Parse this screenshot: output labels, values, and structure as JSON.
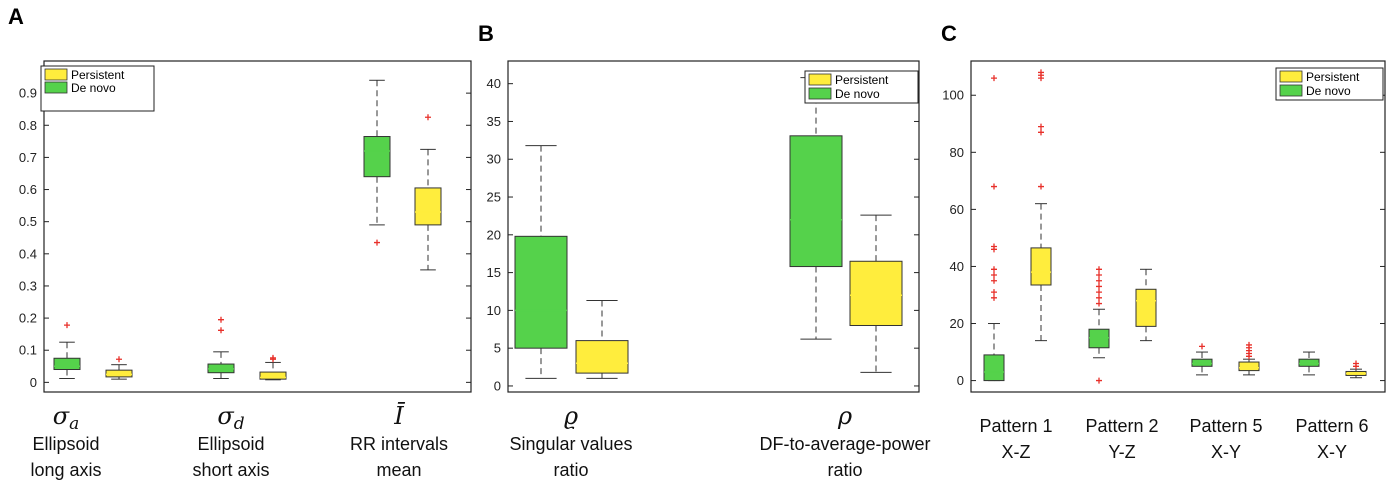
{
  "colors": {
    "persistent": "#FFED3D",
    "de_novo": "#55D24B",
    "outlier": "#E8302A"
  },
  "panels": [
    {
      "label": "A",
      "legend": [
        "Persistent",
        "De novo"
      ]
    },
    {
      "label": "B",
      "legend": [
        "Persistent",
        "De novo"
      ]
    },
    {
      "label": "C",
      "legend": [
        "Persistent",
        "De novo"
      ]
    }
  ],
  "chart_data": [
    {
      "type": "box",
      "panel": "A",
      "ylim": [
        -0.03,
        1.0
      ],
      "yticks": [
        0,
        0.1,
        0.2,
        0.3,
        0.4,
        0.5,
        0.6,
        0.7,
        0.8,
        0.9
      ],
      "legend_position": "top-left",
      "groups": [
        {
          "symbol": "σ",
          "sub": "a",
          "lines": [
            "Ellipsoid",
            "long axis"
          ],
          "boxes": [
            {
              "series": "De novo",
              "q1": 0.04,
              "median": 0.05,
              "q3": 0.075,
              "wl": 0.012,
              "wh": 0.125,
              "out": [
                0.178
              ]
            },
            {
              "series": "Persistent",
              "q1": 0.017,
              "median": 0.025,
              "q3": 0.038,
              "wl": 0.01,
              "wh": 0.055,
              "out": [
                0.072
              ]
            }
          ]
        },
        {
          "symbol": "σ",
          "sub": "d",
          "lines": [
            "Ellipsoid",
            "short axis"
          ],
          "boxes": [
            {
              "series": "De novo",
              "q1": 0.03,
              "median": 0.042,
              "q3": 0.057,
              "wl": 0.012,
              "wh": 0.095,
              "out": [
                0.162,
                0.195
              ]
            },
            {
              "series": "Persistent",
              "q1": 0.01,
              "median": 0.015,
              "q3": 0.032,
              "wl": 0.008,
              "wh": 0.062,
              "out": [
                0.072,
                0.076
              ]
            }
          ]
        },
        {
          "symbol": "Ī",
          "sub": "",
          "lines": [
            "RR intervals",
            "mean"
          ],
          "boxes": [
            {
              "series": "De novo",
              "q1": 0.64,
              "median": 0.72,
              "q3": 0.765,
              "wl": 0.49,
              "wh": 0.94,
              "out": [
                0.435
              ]
            },
            {
              "series": "Persistent",
              "q1": 0.49,
              "median": 0.53,
              "q3": 0.605,
              "wl": 0.35,
              "wh": 0.725,
              "out": [
                0.825
              ]
            }
          ]
        }
      ]
    },
    {
      "type": "box",
      "panel": "B",
      "ylim": [
        -0.8,
        43
      ],
      "yticks": [
        0,
        5,
        10,
        15,
        20,
        25,
        30,
        35,
        40
      ],
      "legend_position": "top-right",
      "groups": [
        {
          "symbol": "ϱ",
          "sub": "",
          "lines": [
            "Singular values",
            "ratio"
          ],
          "boxes": [
            {
              "series": "De novo",
              "q1": 5,
              "median": 10,
              "q3": 19.8,
              "wl": 1,
              "wh": 31.8,
              "out": []
            },
            {
              "series": "Persistent",
              "q1": 1.7,
              "median": 3,
              "q3": 6,
              "wl": 1,
              "wh": 11.3,
              "out": []
            }
          ]
        },
        {
          "symbol": "ρ",
          "sub": "",
          "lines": [
            "DF-to-average-power",
            "ratio"
          ],
          "boxes": [
            {
              "series": "De novo",
              "q1": 15.8,
              "median": 22,
              "q3": 33.1,
              "wl": 6.2,
              "wh": 40.8,
              "out": []
            },
            {
              "series": "Persistent",
              "q1": 8,
              "median": 12,
              "q3": 16.5,
              "wl": 1.8,
              "wh": 22.6,
              "out": []
            }
          ]
        }
      ]
    },
    {
      "type": "box",
      "panel": "C",
      "ylim": [
        -4,
        112
      ],
      "yticks": [
        0,
        20,
        40,
        60,
        80,
        100
      ],
      "legend_position": "top-right",
      "groups": [
        {
          "symbol": "",
          "sub": "",
          "lines": [
            "Pattern 1",
            "X-Z"
          ],
          "boxes": [
            {
              "series": "De novo",
              "q1": 0,
              "median": 3,
              "q3": 9,
              "wl": 0,
              "wh": 20,
              "out": [
                29,
                31,
                35,
                37,
                39,
                46,
                47,
                68,
                106
              ]
            },
            {
              "series": "Persistent",
              "q1": 33.5,
              "median": 38,
              "q3": 46.5,
              "wl": 14,
              "wh": 62,
              "out": [
                68,
                87,
                89,
                106,
                107,
                108
              ]
            }
          ]
        },
        {
          "symbol": "",
          "sub": "",
          "lines": [
            "Pattern 2",
            "Y-Z"
          ],
          "boxes": [
            {
              "series": "De novo",
              "q1": 11.5,
              "median": 15,
              "q3": 18,
              "wl": 8,
              "wh": 25,
              "out": [
                0,
                27,
                29,
                31,
                33,
                35,
                37,
                39
              ]
            },
            {
              "series": "Persistent",
              "q1": 19,
              "median": 28,
              "q3": 32,
              "wl": 14,
              "wh": 39,
              "out": []
            }
          ]
        },
        {
          "symbol": "",
          "sub": "",
          "lines": [
            "Pattern 5",
            "X-Y"
          ],
          "boxes": [
            {
              "series": "De novo",
              "q1": 5,
              "median": 6,
              "q3": 7.5,
              "wl": 2,
              "wh": 10,
              "out": [
                12
              ]
            },
            {
              "series": "Persistent",
              "q1": 3.5,
              "median": 4.5,
              "q3": 6.5,
              "wl": 2,
              "wh": 7.5,
              "out": [
                8.5,
                9.5,
                10.5,
                11.5,
                12.5
              ]
            }
          ]
        },
        {
          "symbol": "",
          "sub": "",
          "lines": [
            "Pattern 6",
            "X-Y"
          ],
          "boxes": [
            {
              "series": "De novo",
              "q1": 5,
              "median": 6,
              "q3": 7.5,
              "wl": 2,
              "wh": 10,
              "out": []
            },
            {
              "series": "Persistent",
              "q1": 1.8,
              "median": 2.5,
              "q3": 3.2,
              "wl": 1,
              "wh": 4,
              "out": [
                5,
                6
              ]
            }
          ]
        }
      ]
    }
  ]
}
